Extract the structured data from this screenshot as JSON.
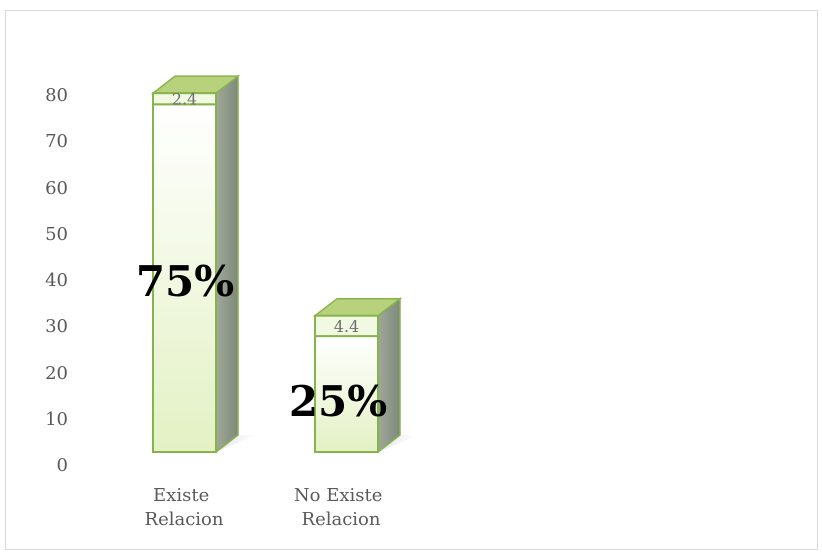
{
  "chart_data": {
    "type": "bar",
    "stacked": true,
    "style": "3d-column",
    "categories": [
      [
        "Existe",
        "Relacion"
      ],
      [
        "No Existe",
        "Relacion"
      ]
    ],
    "series": [
      {
        "values": [
          75,
          25
        ]
      },
      {
        "values": [
          2.4,
          4.4
        ]
      }
    ],
    "segment_labels": [
      "2.4",
      "4.4"
    ],
    "percent_labels": [
      "75%",
      "25%"
    ],
    "y_ticks": [
      "0",
      "10",
      "20",
      "30",
      "40",
      "50",
      "60",
      "70",
      "80"
    ],
    "ylim": [
      0,
      80
    ],
    "grid": false,
    "colors": {
      "bar_fill_top": "#ffffff",
      "bar_fill_bottom": "#e3f1c4",
      "bar_border": "#86b34a",
      "bar_side": "#8c9a86",
      "bar_top": "#b7d17c"
    }
  }
}
